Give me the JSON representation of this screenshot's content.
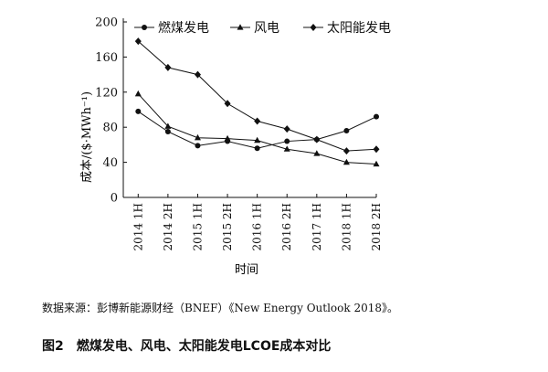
{
  "chart_data": {
    "type": "line",
    "categories": [
      "2014 1H",
      "2014 2H",
      "2015 1H",
      "2015 2H",
      "2016 1H",
      "2016 2H",
      "2017 1H",
      "2018 1H",
      "2018 2H"
    ],
    "series": [
      {
        "name": "燃煤发电",
        "marker": "circle",
        "values": [
          98,
          75,
          59,
          64,
          56,
          64,
          66,
          76,
          92
        ]
      },
      {
        "name": "风电",
        "marker": "triangle",
        "values": [
          118,
          81,
          68,
          67,
          65,
          55,
          50,
          40,
          38
        ]
      },
      {
        "name": "太阳能发电",
        "marker": "diamond",
        "values": [
          178,
          148,
          140,
          107,
          87,
          78,
          66,
          53,
          55
        ]
      }
    ],
    "yticks": [
      0,
      40,
      80,
      120,
      160,
      200
    ],
    "ylim": [
      0,
      200
    ],
    "xlabel": "时间",
    "ylabel": "成本/($·MWh⁻¹)",
    "legend": "top",
    "grid": false,
    "line_color": "#111111"
  },
  "source_text": "数据来源：彭博新能源财经（BNEF）《New Energy Outlook 2018》。",
  "caption": {
    "number": "图2",
    "text": "燃煤发电、风电、太阳能发电LCOE成本对比"
  }
}
